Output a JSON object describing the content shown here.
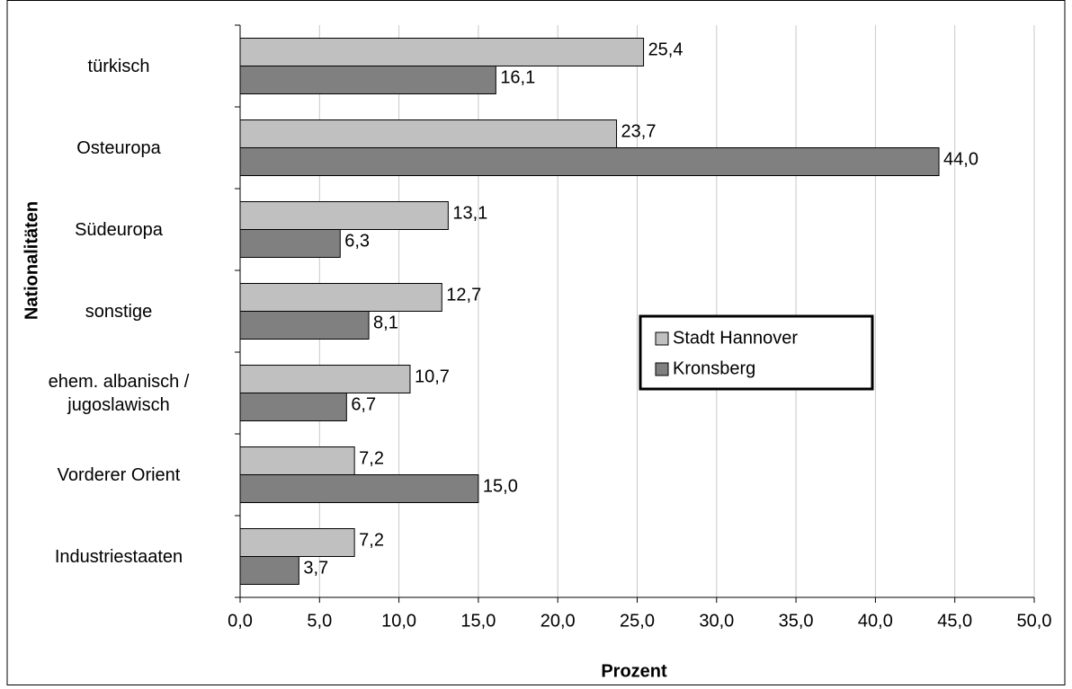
{
  "chart_data": {
    "type": "bar",
    "orientation": "horizontal",
    "x_label": "Prozent",
    "y_label": "Nationalitäten",
    "categories": [
      "türkisch",
      "Osteuropa",
      "Südeuropa",
      "sonstige",
      "ehem. albanisch / jugoslawisch",
      "Vorderer Orient",
      "Industriestaaten"
    ],
    "series": [
      {
        "name": "Stadt Hannover",
        "color": "#c0c0c0",
        "values": [
          25.4,
          23.7,
          13.1,
          12.7,
          10.7,
          7.2,
          7.2
        ],
        "value_labels": [
          "25,4",
          "23,7",
          "13,1",
          "12,7",
          "10,7",
          "7,2",
          "7,2"
        ]
      },
      {
        "name": "Kronsberg",
        "color": "#808080",
        "values": [
          16.1,
          44.0,
          6.3,
          8.1,
          6.7,
          15.0,
          3.7
        ],
        "value_labels": [
          "16,1",
          "44,0",
          "6,3",
          "8,1",
          "6,7",
          "15,0",
          "3,7"
        ]
      }
    ],
    "xlim": [
      0,
      50
    ],
    "xticks": [
      {
        "value": 0,
        "label": "0,0"
      },
      {
        "value": 5,
        "label": "5,0"
      },
      {
        "value": 10,
        "label": "10,0"
      },
      {
        "value": 15,
        "label": "15,0"
      },
      {
        "value": 20,
        "label": "20,0"
      },
      {
        "value": 25,
        "label": "25,0"
      },
      {
        "value": 30,
        "label": "30,0"
      },
      {
        "value": 35,
        "label": "35,0"
      },
      {
        "value": 40,
        "label": "40,0"
      },
      {
        "value": 45,
        "label": "45,0"
      },
      {
        "value": 50,
        "label": "50,0"
      }
    ],
    "grid": true
  }
}
